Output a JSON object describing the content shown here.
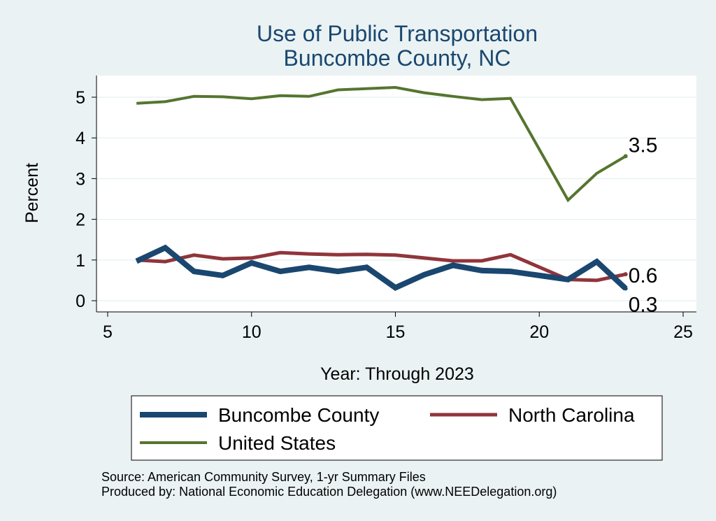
{
  "chart_data": {
    "type": "line",
    "title": [
      "Use of Public Transportation",
      "Buncombe County, NC"
    ],
    "xlabel": "Year: Through 2023",
    "ylabel": "Percent",
    "xlim": [
      5,
      25
    ],
    "ylim": [
      0,
      5.5
    ],
    "xticks": [
      5,
      10,
      15,
      20,
      25
    ],
    "yticks": [
      0,
      1,
      2,
      3,
      4,
      5
    ],
    "grid": true,
    "legend_position": "bottom",
    "x": [
      6,
      7,
      8,
      9,
      10,
      11,
      12,
      13,
      14,
      15,
      16,
      17,
      18,
      19,
      21,
      22,
      23
    ],
    "series": [
      {
        "name": "Buncombe County",
        "color": "#1a476f",
        "values": [
          0.97,
          1.3,
          0.72,
          0.62,
          0.93,
          0.72,
          0.82,
          0.72,
          0.82,
          0.32,
          0.64,
          0.87,
          0.74,
          0.72,
          0.52,
          0.96,
          0.3
        ],
        "end_label": "0.3"
      },
      {
        "name": "North Carolina",
        "color": "#90353b",
        "values": [
          1.0,
          0.96,
          1.12,
          1.03,
          1.05,
          1.18,
          1.15,
          1.13,
          1.14,
          1.12,
          1.05,
          0.98,
          0.98,
          1.13,
          0.52,
          0.5,
          0.65
        ],
        "end_label": "0.6"
      },
      {
        "name": "United States",
        "color": "#55752f",
        "values": [
          4.85,
          4.89,
          5.02,
          5.01,
          4.96,
          5.04,
          5.02,
          5.18,
          5.21,
          5.24,
          5.11,
          5.02,
          4.94,
          4.97,
          2.47,
          3.13,
          3.55
        ],
        "end_label": "3.5"
      }
    ],
    "notes": [
      "Source: American Community Survey, 1-yr Summary Files",
      "Produced by: National Economic Education Delegation (www.NEEDelegation.org)"
    ]
  }
}
